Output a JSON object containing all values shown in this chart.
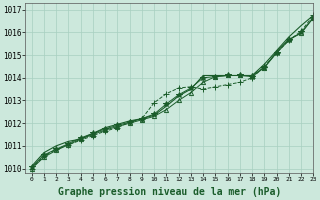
{
  "background_color": "#cce8dc",
  "grid_color": "#a8cfc0",
  "line_color": "#1a5c2a",
  "xlabel": "Graphe pression niveau de la mer (hPa)",
  "xlabel_fontsize": 7,
  "xlim": [
    -0.5,
    23
  ],
  "ylim": [
    1009.8,
    1017.3
  ],
  "yticks": [
    1010,
    1011,
    1012,
    1013,
    1014,
    1015,
    1016,
    1017
  ],
  "xticks": [
    0,
    1,
    2,
    3,
    4,
    5,
    6,
    7,
    8,
    9,
    10,
    11,
    12,
    13,
    14,
    15,
    16,
    17,
    18,
    19,
    20,
    21,
    22,
    23
  ],
  "series": [
    {
      "y": [
        1010.1,
        1010.7,
        1011.0,
        1011.2,
        1011.3,
        1011.55,
        1011.8,
        1011.95,
        1012.1,
        1012.2,
        1012.35,
        1012.75,
        1013.2,
        1013.5,
        1014.1,
        1014.1,
        1014.1,
        1014.1,
        1014.1,
        1014.6,
        1015.2,
        1015.8,
        1016.3,
        1016.75
      ],
      "marker": null,
      "linestyle": "-",
      "linewidth": 0.8
    },
    {
      "y": [
        1010.0,
        1010.55,
        1010.85,
        1011.05,
        1011.25,
        1011.45,
        1011.65,
        1011.8,
        1012.05,
        1012.2,
        1012.9,
        1013.3,
        1013.55,
        1013.6,
        1013.5,
        1013.6,
        1013.7,
        1013.8,
        1014.0,
        1014.5,
        1015.1,
        1015.65,
        1016.05,
        1016.75
      ],
      "marker": "+",
      "linestyle": "--",
      "linewidth": 0.7
    },
    {
      "y": [
        1010.0,
        1010.5,
        1010.8,
        1011.05,
        1011.3,
        1011.5,
        1011.7,
        1011.85,
        1012.0,
        1012.15,
        1012.3,
        1012.6,
        1013.0,
        1013.35,
        1013.8,
        1014.05,
        1014.1,
        1014.1,
        1014.1,
        1014.45,
        1015.15,
        1015.7,
        1015.95,
        1016.65
      ],
      "marker": "^",
      "linestyle": "-",
      "linewidth": 0.7
    },
    {
      "y": [
        1010.05,
        1010.6,
        1010.85,
        1011.1,
        1011.35,
        1011.55,
        1011.75,
        1011.9,
        1012.05,
        1012.2,
        1012.4,
        1012.85,
        1013.25,
        1013.55,
        1014.0,
        1014.05,
        1014.1,
        1014.1,
        1014.05,
        1014.45,
        1015.1,
        1015.65,
        1016.0,
        1016.65
      ],
      "marker": "*",
      "linestyle": "-",
      "linewidth": 0.7
    }
  ]
}
